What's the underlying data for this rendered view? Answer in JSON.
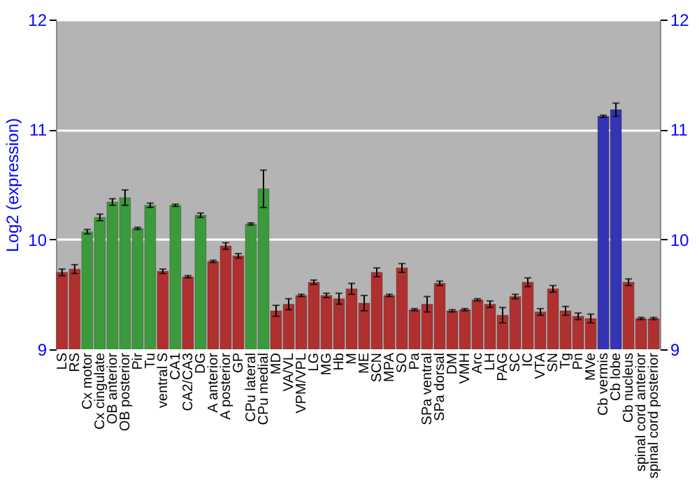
{
  "chart_data": {
    "type": "bar",
    "ylabel": "Log2 (expression)",
    "categories": [
      "LS",
      "RS",
      "Cx motor",
      "Cx cingulate",
      "OB anterior",
      "OB posterior",
      "Pir",
      "Tu",
      "ventral S",
      "CA1",
      "CA2/CA3",
      "DG",
      "A anterior",
      "A posterior",
      "GP",
      "CPu lateral",
      "CPu medial",
      "MD",
      "VA/VL",
      "VPM/VPL",
      "LG",
      "MG",
      "Hb",
      "M",
      "ME",
      "SCN",
      "MPA",
      "SO",
      "Pa",
      "SPa ventral",
      "SPa dorsal",
      "DM",
      "VMH",
      "Arc",
      "LH",
      "PAG",
      "SC",
      "IC",
      "VTA",
      "SN",
      "Tg",
      "Pn",
      "MVe",
      "Cb vermis",
      "Cb lobe",
      "Cb nucleus",
      "spinal cord anterior",
      "spinal cord posterior"
    ],
    "values": [
      9.7,
      9.73,
      10.07,
      10.2,
      10.34,
      10.38,
      10.1,
      10.31,
      9.71,
      10.31,
      9.66,
      10.22,
      9.8,
      9.94,
      9.85,
      10.14,
      10.46,
      9.35,
      9.41,
      9.49,
      9.61,
      9.49,
      9.46,
      9.55,
      9.42,
      9.7,
      9.49,
      9.74,
      9.36,
      9.41,
      9.6,
      9.35,
      9.36,
      9.45,
      9.41,
      9.31,
      9.48,
      9.61,
      9.34,
      9.55,
      9.35,
      9.3,
      9.28,
      11.12,
      11.18,
      9.61,
      9.28,
      9.28
    ],
    "errors": [
      0.03,
      0.04,
      0.02,
      0.03,
      0.03,
      0.07,
      0.01,
      0.02,
      0.02,
      0.01,
      0.01,
      0.02,
      0.01,
      0.03,
      0.02,
      0.01,
      0.17,
      0.05,
      0.05,
      0.01,
      0.02,
      0.02,
      0.05,
      0.05,
      0.07,
      0.04,
      0.01,
      0.04,
      0.01,
      0.07,
      0.02,
      0.01,
      0.01,
      0.01,
      0.03,
      0.07,
      0.02,
      0.04,
      0.03,
      0.03,
      0.04,
      0.03,
      0.04,
      0.01,
      0.06,
      0.03,
      0.01,
      0.01
    ],
    "colors": [
      "#b03030",
      "#b03030",
      "#3c9a3c",
      "#3c9a3c",
      "#3c9a3c",
      "#3c9a3c",
      "#3c9a3c",
      "#3c9a3c",
      "#b03030",
      "#3c9a3c",
      "#b03030",
      "#3c9a3c",
      "#b03030",
      "#b03030",
      "#b03030",
      "#3c9a3c",
      "#3c9a3c",
      "#b03030",
      "#b03030",
      "#b03030",
      "#b03030",
      "#b03030",
      "#b03030",
      "#b03030",
      "#b03030",
      "#b03030",
      "#b03030",
      "#b03030",
      "#b03030",
      "#b03030",
      "#b03030",
      "#b03030",
      "#b03030",
      "#b03030",
      "#b03030",
      "#b03030",
      "#b03030",
      "#b03030",
      "#b03030",
      "#b03030",
      "#b03030",
      "#b03030",
      "#b03030",
      "#3434b4",
      "#3434b4",
      "#b03030",
      "#b03030",
      "#b03030"
    ],
    "ylim": [
      9,
      12
    ],
    "yticks": [
      9,
      10,
      11,
      12
    ],
    "y2lim": [
      9,
      12
    ],
    "y2ticks": [
      9,
      10,
      11,
      12
    ],
    "grid": "y"
  }
}
